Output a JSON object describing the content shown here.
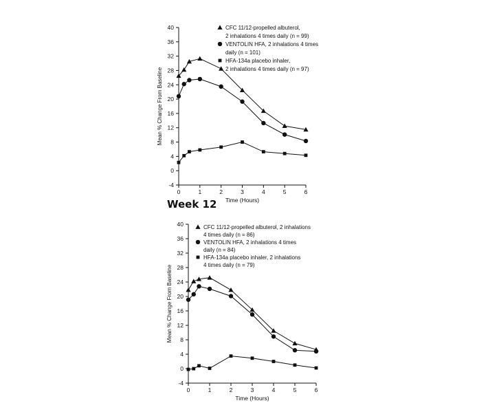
{
  "section_title": "Week 12",
  "chart_data": [
    {
      "type": "line",
      "title": "",
      "xlabel": "Time (Hours)",
      "ylabel": "Mean % Change From Baseline",
      "xlim": [
        0,
        6
      ],
      "ylim": [
        -4,
        40
      ],
      "xticks": [
        "0",
        "1",
        "2",
        "3",
        "4",
        "5",
        "6"
      ],
      "yticks": [
        "-4",
        "0",
        "4",
        "8",
        "12",
        "16",
        "20",
        "24",
        "28",
        "32",
        "36",
        "40"
      ],
      "grid": false,
      "legend_position": "top-right",
      "series": [
        {
          "name": "CFC 11/12-propelled albuterol, 2 inhalations 4 times daily (n = 99)",
          "legend_lines": [
            "CFC 11/12-propelled albuterol,",
            "2 inhalations 4 times daily (n = 99)"
          ],
          "marker": "triangle",
          "x": [
            0,
            0.25,
            0.5,
            1,
            2,
            3,
            4,
            5,
            6
          ],
          "y": [
            26.5,
            28.2,
            30.5,
            31.3,
            28.5,
            22.5,
            16.7,
            12.5,
            11.5
          ]
        },
        {
          "name": "VENTOLIN HFA, 2 inhalations 4 times daily (n = 101)",
          "legend_lines": [
            "VENTOLIN HFA, 2 inhalations 4 times",
            "daily (n = 101)"
          ],
          "marker": "circle",
          "x": [
            0,
            0.25,
            0.5,
            1,
            2,
            3,
            4,
            5,
            6
          ],
          "y": [
            20.8,
            24.2,
            25.3,
            25.6,
            23.5,
            19.3,
            13.3,
            10.1,
            8.3
          ]
        },
        {
          "name": "HFA-134a placebo inhaler, 2 inhalations 4 times daily (n = 97)",
          "legend_lines": [
            "HFA-134a placebo inhaler,",
            "2 inhalations 4 times daily (n = 97)"
          ],
          "marker": "square",
          "x": [
            0,
            0.25,
            0.5,
            1,
            2,
            3,
            4,
            5,
            6
          ],
          "y": [
            2.3,
            4.2,
            5.3,
            5.8,
            6.6,
            8.0,
            5.3,
            4.8,
            4.3
          ]
        }
      ]
    },
    {
      "type": "line",
      "title": "",
      "xlabel": "Time (Hours)",
      "ylabel": "Mean % Change From Baseline",
      "xlim": [
        0,
        6
      ],
      "ylim": [
        -4,
        40
      ],
      "xticks": [
        "0",
        "1",
        "2",
        "3",
        "4",
        "5",
        "6"
      ],
      "yticks": [
        "-4",
        "0",
        "4",
        "8",
        "12",
        "16",
        "20",
        "24",
        "28",
        "32",
        "36",
        "40"
      ],
      "grid": false,
      "legend_position": "top-right",
      "series": [
        {
          "name": "CFC 11/12-propelled albuterol, 2 inhalations 4 times daily (n = 86)",
          "legend_lines": [
            "CFC 11/12-propelled albuterol, 2 inhalations",
            "4 times daily (n = 86)"
          ],
          "marker": "triangle",
          "x": [
            0,
            0.25,
            0.5,
            1,
            2,
            3,
            4,
            5,
            6
          ],
          "y": [
            21.8,
            24.2,
            24.8,
            25.2,
            21.8,
            16.3,
            10.5,
            7.0,
            5.3
          ]
        },
        {
          "name": "VENTOLIN HFA, 2 inhalations 4 times daily (n = 84)",
          "legend_lines": [
            "VENTOLIN HFA, 2 inhalations 4 times",
            "daily (n = 84)"
          ],
          "marker": "circle",
          "x": [
            0,
            0.25,
            0.5,
            1,
            2,
            3,
            4,
            5,
            6
          ],
          "y": [
            19.1,
            20.6,
            22.8,
            22.1,
            20.1,
            15.0,
            8.9,
            5.1,
            4.8
          ]
        },
        {
          "name": "HFA-134a placebo inhaler, 2 inhalations 4 times daily (n = 79)",
          "legend_lines": [
            "HFA-134a placebo inhaler, 2 inhalations",
            "4 times daily (n = 79)"
          ],
          "marker": "square",
          "x": [
            0,
            0.25,
            0.5,
            1,
            2,
            3,
            4,
            5,
            6
          ],
          "y": [
            -0.2,
            0.0,
            0.8,
            0.1,
            3.5,
            2.9,
            2.0,
            1.0,
            0.2
          ]
        }
      ]
    }
  ]
}
